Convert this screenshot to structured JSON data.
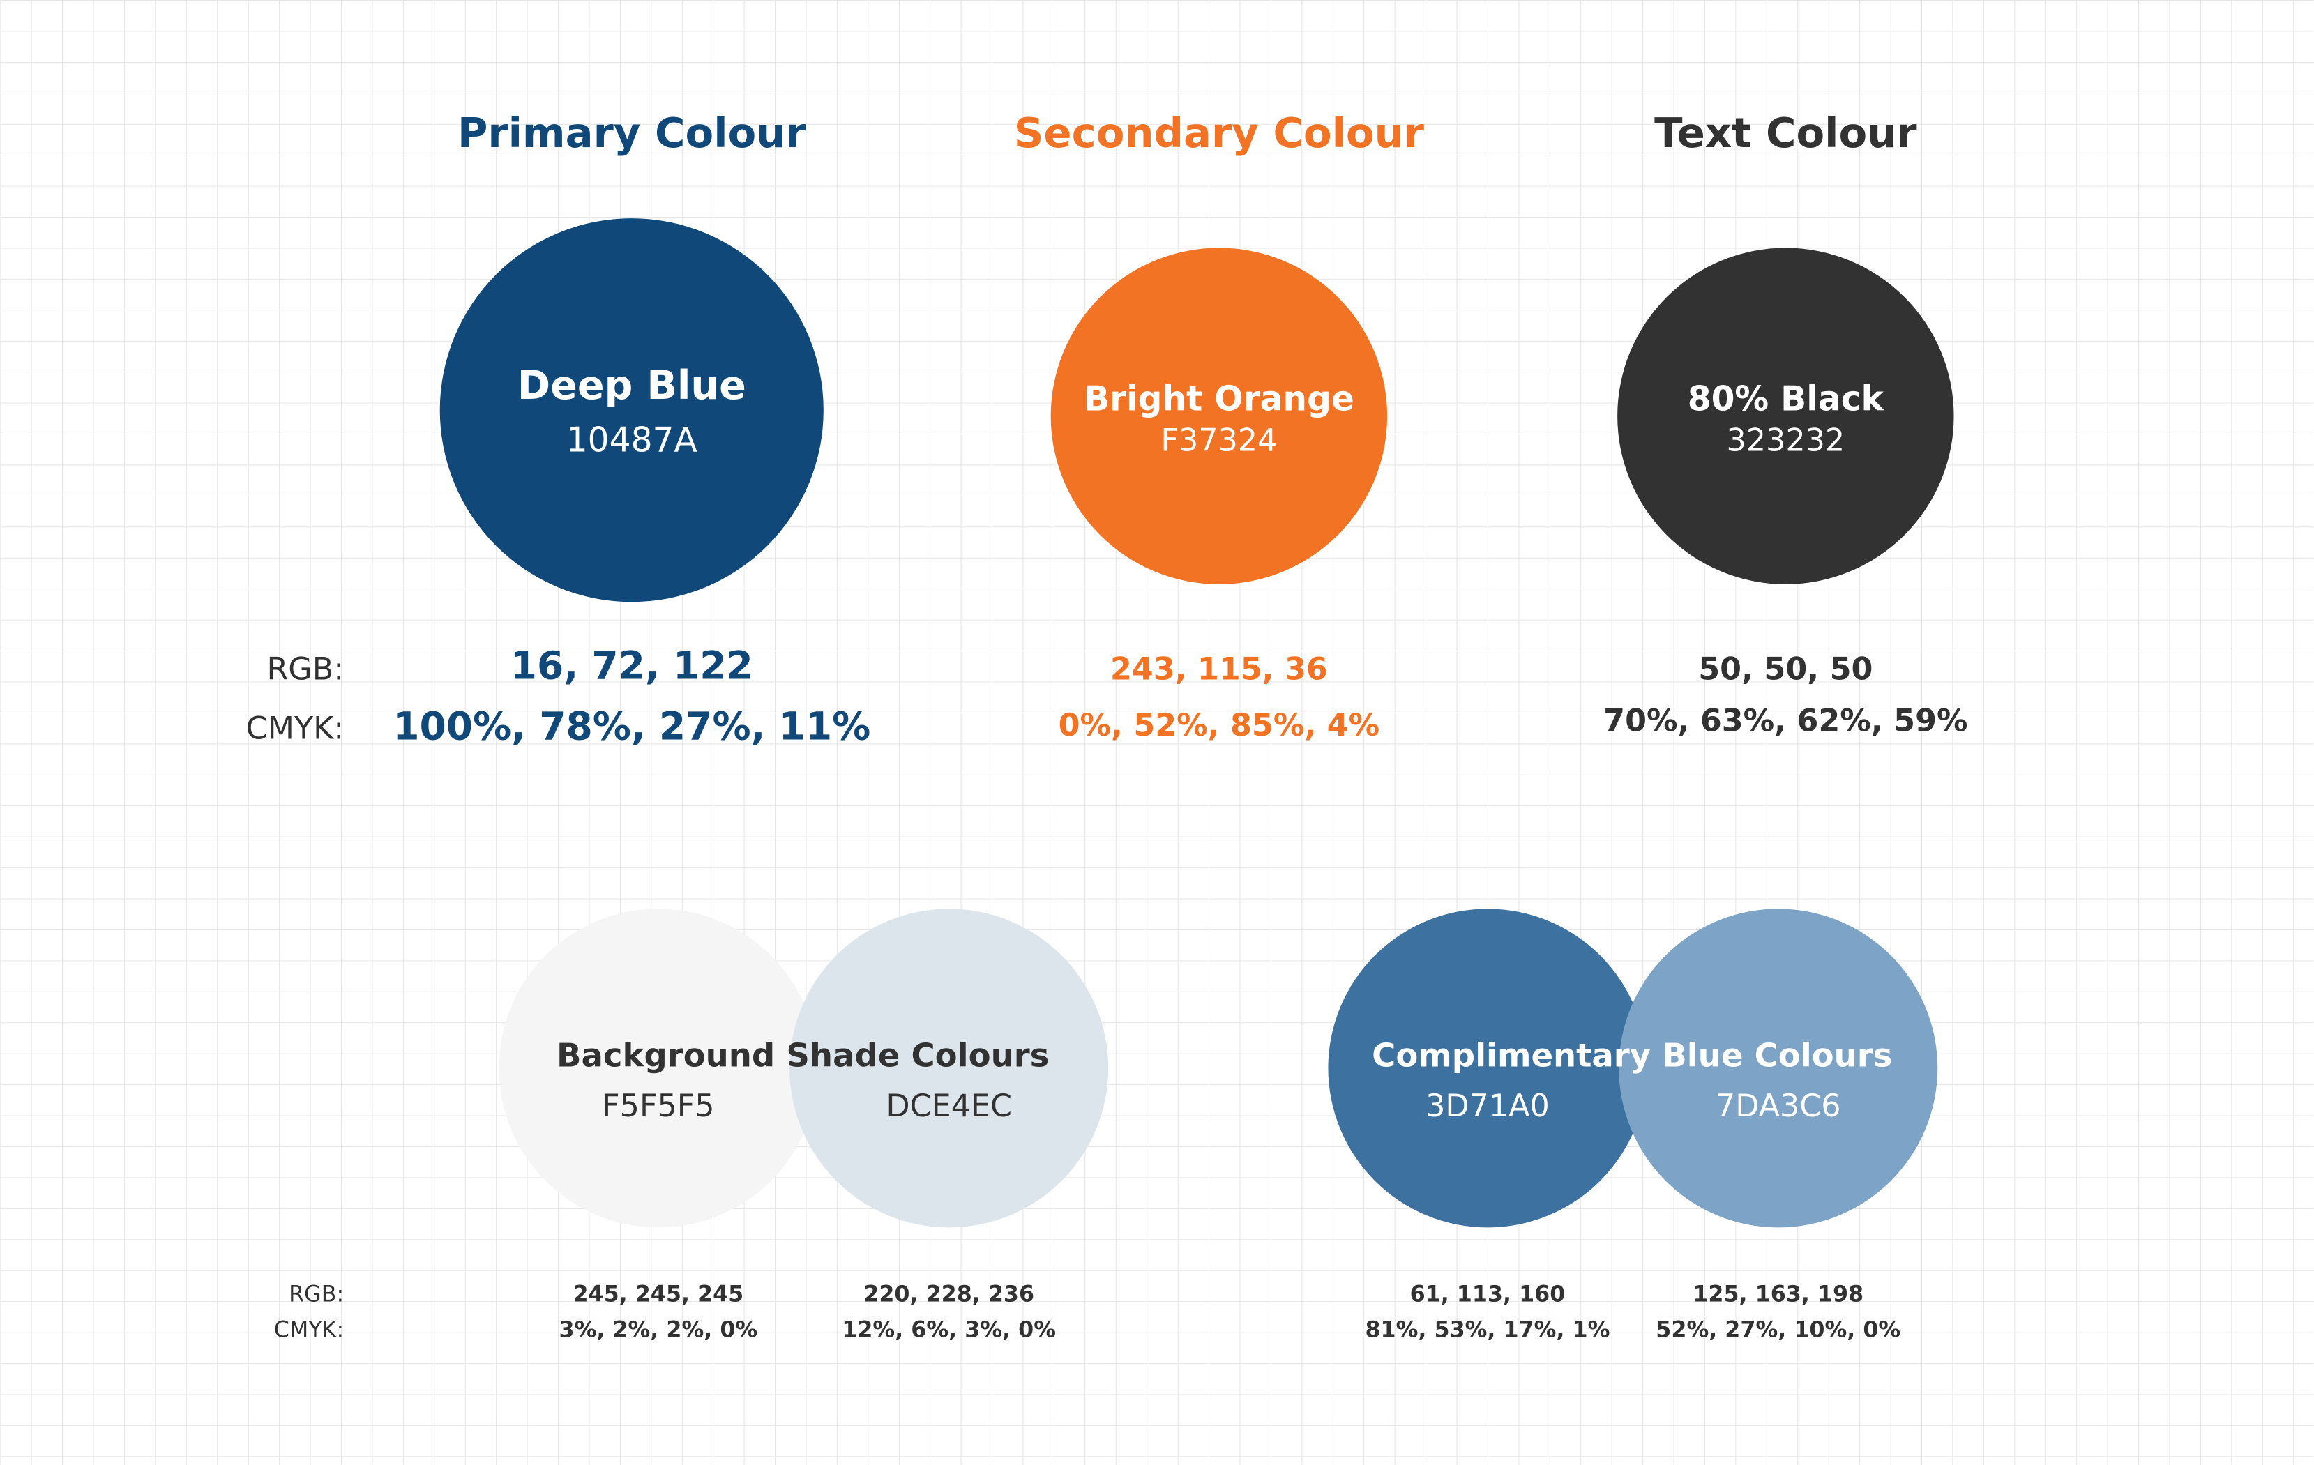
{
  "labels": {
    "rgb": "RGB:",
    "cmyk": "CMYK:"
  },
  "sections": [
    {
      "title": "Primary Colour",
      "swatch": {
        "name": "Deep Blue",
        "hex": "10487A",
        "color": "#10487A",
        "rgb": "16, 72, 122",
        "cmyk": "100%, 78%, 27%, 11%"
      }
    },
    {
      "title": "Secondary Colour",
      "swatch": {
        "name": "Bright Orange",
        "hex": "F37324",
        "color": "#F37324",
        "rgb": "243, 115, 36",
        "cmyk": "0%, 52%, 85%, 4%"
      }
    },
    {
      "title": "Text Colour",
      "swatch": {
        "name": "80% Black",
        "hex": "323232",
        "color": "#323232",
        "rgb": "50, 50, 50",
        "cmyk": "70%, 63%, 62%, 59%"
      }
    }
  ],
  "groups": [
    {
      "title": "Background Shade Colours",
      "swatches": [
        {
          "hex": "F5F5F5",
          "color": "#F5F5F5",
          "rgb": "245, 245, 245",
          "cmyk": "3%, 2%, 2%, 0%"
        },
        {
          "hex": "DCE4EC",
          "color": "#DCE4EC",
          "rgb": "220, 228, 236",
          "cmyk": "12%, 6%, 3%, 0%"
        }
      ]
    },
    {
      "title": "Complimentary Blue Colours",
      "swatches": [
        {
          "hex": "3D71A0",
          "color": "#3D71A0",
          "rgb": "61, 113, 160",
          "cmyk": "81%, 53%, 17%, 1%"
        },
        {
          "hex": "7DA3C6",
          "color": "#7DA3C6",
          "rgb": "125, 163, 198",
          "cmyk": "52%, 27%, 10%, 0%"
        }
      ]
    }
  ]
}
